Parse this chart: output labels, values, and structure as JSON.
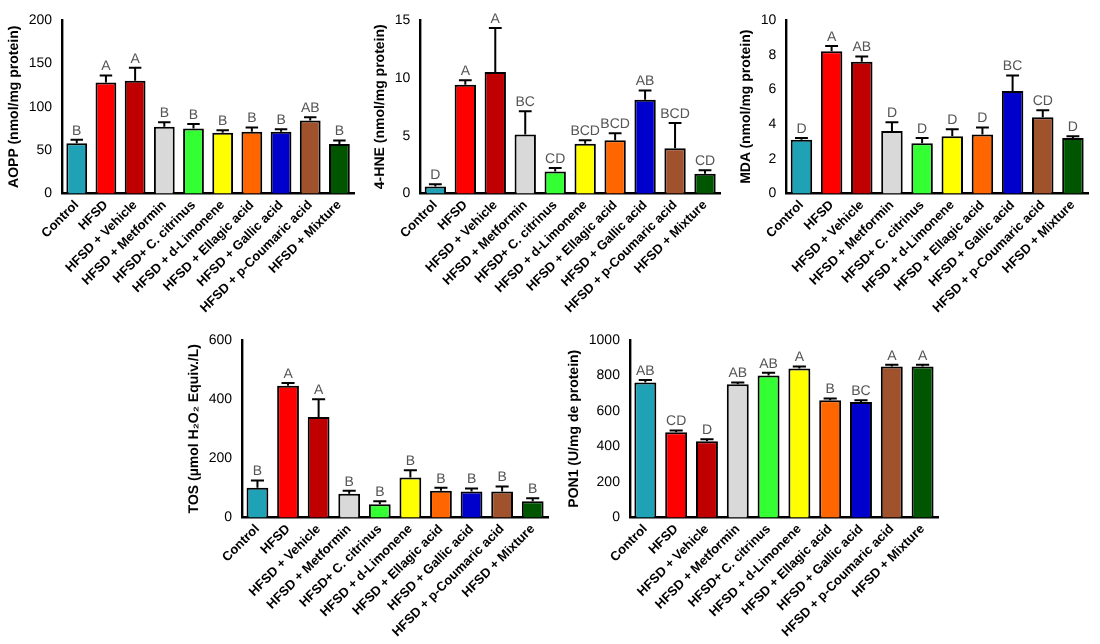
{
  "chart_data": [
    {
      "type": "bar",
      "ylabel": "AOPP (nmol/mg protein)",
      "categories": [
        "Control",
        "HFSD",
        "HFSD + Vehicle",
        "HFSD + Metformin",
        "HFSD+ C. citrinus",
        "HFSD + d-Limonene",
        "HFSD + Ellagic acid",
        "HFSD + Gallic acid",
        "HFSD + p-Coumaric acid",
        "HFSD + Mixture"
      ],
      "values": [
        58,
        128,
        130,
        77,
        75,
        70,
        71,
        71,
        84,
        57
      ],
      "colors": [
        "#1fa2b6",
        "#ff0000",
        "#c00000",
        "#d9d9d9",
        "#33ff33",
        "#ffff00",
        "#ff6600",
        "#0000cc",
        "#a0522d",
        "#005500"
      ],
      "errors": [
        [
          58,
          62
        ],
        [
          128,
          136
        ],
        [
          130,
          145
        ],
        [
          77,
          82
        ],
        [
          75,
          80
        ],
        [
          70,
          73
        ],
        [
          71,
          76
        ],
        [
          71,
          74
        ],
        [
          84,
          88
        ],
        [
          57,
          61
        ]
      ],
      "ylim": [
        0,
        200
      ],
      "yticks": [
        0,
        50,
        100,
        150,
        200
      ],
      "grid": false,
      "legend": false,
      "annotations": [
        {
          "text": "B",
          "x": "Control",
          "y": 62
        },
        {
          "text": "A",
          "x": "HFSD",
          "y": 136
        },
        {
          "text": "A",
          "x": "HFSD + Vehicle",
          "y": 145
        },
        {
          "text": "B",
          "x": "HFSD + Metformin",
          "y": 82
        },
        {
          "text": "B",
          "x": "HFSD+ C. citrinus",
          "y": 80
        },
        {
          "text": "B",
          "x": "HFSD + d-Limonene",
          "y": 73
        },
        {
          "text": "B",
          "x": "HFSD + Ellagic acid",
          "y": 76
        },
        {
          "text": "B",
          "x": "HFSD + Gallic acid",
          "y": 74
        },
        {
          "text": "AB",
          "x": "HFSD + p-Coumaric acid",
          "y": 88
        },
        {
          "text": "B",
          "x": "HFSD + Mixture",
          "y": 61
        }
      ]
    },
    {
      "type": "bar",
      "ylabel": "4-HNE (nmol/mg protein)",
      "categories": [
        "Control",
        "HFSD",
        "HFSD + Vehicle",
        "HFSD + Metformin",
        "HFSD+ C. citrinus",
        "HFSD + d-Limonene",
        "HFSD + Ellagic acid",
        "HFSD + Gallic acid",
        "HFSD + p-Coumaric acid",
        "HFSD + Mixture"
      ],
      "values": [
        0.6,
        9.4,
        10.5,
        5.1,
        1.9,
        4.3,
        4.6,
        8.1,
        3.9,
        1.7
      ],
      "colors": [
        "#1fa2b6",
        "#ff0000",
        "#c00000",
        "#d9d9d9",
        "#33ff33",
        "#ffff00",
        "#ff6600",
        "#0000cc",
        "#a0522d",
        "#005500"
      ],
      "errors": [
        [
          0.6,
          0.8
        ],
        [
          9.4,
          9.8
        ],
        [
          10.5,
          14.3
        ],
        [
          5.1,
          7.1
        ],
        [
          1.9,
          2.2
        ],
        [
          4.3,
          4.6
        ],
        [
          4.6,
          5.2
        ],
        [
          8.1,
          8.9
        ],
        [
          3.9,
          6.1
        ],
        [
          1.7,
          2.0
        ]
      ],
      "ylim": [
        0,
        15
      ],
      "yticks": [
        0,
        5,
        10,
        15
      ],
      "grid": false,
      "legend": false,
      "annotations": [
        {
          "text": "D",
          "x": "Control",
          "y": 0.8
        },
        {
          "text": "A",
          "x": "HFSD",
          "y": 9.8
        },
        {
          "text": "A",
          "x": "HFSD + Vehicle",
          "y": 14.3
        },
        {
          "text": "BC",
          "x": "HFSD + Metformin",
          "y": 7.1
        },
        {
          "text": "CD",
          "x": "HFSD+ C. citrinus",
          "y": 2.2
        },
        {
          "text": "BCD",
          "x": "HFSD + d-Limonene",
          "y": 4.6
        },
        {
          "text": "BCD",
          "x": "HFSD + Ellagic acid",
          "y": 5.2
        },
        {
          "text": "AB",
          "x": "HFSD + Gallic acid",
          "y": 8.9
        },
        {
          "text": "BCD",
          "x": "HFSD + p-Coumaric acid",
          "y": 6.1
        },
        {
          "text": "CD",
          "x": "HFSD + Mixture",
          "y": 2.0
        }
      ]
    },
    {
      "type": "bar",
      "ylabel": "MDA (nmol/mg protein)",
      "categories": [
        "Control",
        "HFSD",
        "HFSD + Vehicle",
        "HFSD + Metformin",
        "HFSD+ C. citrinus",
        "HFSD + d-Limonene",
        "HFSD + Ellagic acid",
        "HFSD + Gallic acid",
        "HFSD + p-Coumaric acid",
        "HFSD + Mixture"
      ],
      "values": [
        3.1,
        8.2,
        7.6,
        3.6,
        2.9,
        3.3,
        3.4,
        5.9,
        4.4,
        3.2
      ],
      "colors": [
        "#1fa2b6",
        "#ff0000",
        "#c00000",
        "#d9d9d9",
        "#33ff33",
        "#ffff00",
        "#ff6600",
        "#0000cc",
        "#a0522d",
        "#005500"
      ],
      "errors": [
        [
          3.1,
          3.2
        ],
        [
          8.2,
          8.5
        ],
        [
          7.6,
          7.9
        ],
        [
          3.6,
          4.1
        ],
        [
          2.9,
          3.2
        ],
        [
          3.3,
          3.7
        ],
        [
          3.4,
          3.8
        ],
        [
          5.9,
          6.8
        ],
        [
          4.4,
          4.8
        ],
        [
          3.2,
          3.3
        ]
      ],
      "ylim": [
        0,
        10
      ],
      "yticks": [
        0,
        2,
        4,
        6,
        8,
        10
      ],
      "grid": false,
      "legend": false,
      "annotations": [
        {
          "text": "D",
          "x": "Control",
          "y": 3.2
        },
        {
          "text": "A",
          "x": "HFSD",
          "y": 8.5
        },
        {
          "text": "AB",
          "x": "HFSD + Vehicle",
          "y": 7.9
        },
        {
          "text": "D",
          "x": "HFSD + Metformin",
          "y": 4.1
        },
        {
          "text": "D",
          "x": "HFSD+ C. citrinus",
          "y": 3.2
        },
        {
          "text": "D",
          "x": "HFSD + d-Limonene",
          "y": 3.7
        },
        {
          "text": "D",
          "x": "HFSD + Ellagic acid",
          "y": 3.8
        },
        {
          "text": "BC",
          "x": "HFSD + Gallic acid",
          "y": 6.8
        },
        {
          "text": "CD",
          "x": "HFSD + p-Coumaric acid",
          "y": 4.8
        },
        {
          "text": "D",
          "x": "HFSD + Mixture",
          "y": 3.3
        }
      ]
    },
    {
      "type": "bar",
      "ylabel": "TOS (µmol H₂O₂ Equiv./L)",
      "categories": [
        "Control",
        "HFSD",
        "HFSD + Vehicle",
        "HFSD + Metformin",
        "HFSD+ C. citrinus",
        "HFSD + d-Limonene",
        "HFSD + Ellagic acid",
        "HFSD + Gallic acid",
        "HFSD + p-Coumaric acid",
        "HFSD + Mixture"
      ],
      "values": [
        100,
        445,
        340,
        80,
        45,
        135,
        90,
        88,
        88,
        55
      ],
      "colors": [
        "#1fa2b6",
        "#ff0000",
        "#c00000",
        "#d9d9d9",
        "#33ff33",
        "#ffff00",
        "#ff6600",
        "#0000cc",
        "#a0522d",
        "#005500"
      ],
      "errors": [
        [
          100,
          125
        ],
        [
          445,
          455
        ],
        [
          340,
          400
        ],
        [
          80,
          90
        ],
        [
          45,
          55
        ],
        [
          135,
          160
        ],
        [
          90,
          100
        ],
        [
          88,
          98
        ],
        [
          88,
          105
        ],
        [
          55,
          65
        ]
      ],
      "ylim": [
        0,
        600
      ],
      "yticks": [
        0,
        200,
        400,
        600
      ],
      "grid": false,
      "legend": false,
      "annotations": [
        {
          "text": "B",
          "x": "Control",
          "y": 125
        },
        {
          "text": "A",
          "x": "HFSD",
          "y": 455
        },
        {
          "text": "A",
          "x": "HFSD + Vehicle",
          "y": 400
        },
        {
          "text": "B",
          "x": "HFSD + Metformin",
          "y": 90
        },
        {
          "text": "B",
          "x": "HFSD+ C. citrinus",
          "y": 55
        },
        {
          "text": "B",
          "x": "HFSD + d-Limonene",
          "y": 160
        },
        {
          "text": "B",
          "x": "HFSD + Ellagic acid",
          "y": 100
        },
        {
          "text": "B",
          "x": "HFSD + Gallic acid",
          "y": 98
        },
        {
          "text": "B",
          "x": "HFSD + p-Coumaric acid",
          "y": 105
        },
        {
          "text": "B",
          "x": "HFSD + Mixture",
          "y": 65
        }
      ]
    },
    {
      "type": "bar",
      "ylabel": "PON1 (U/mg de protein)",
      "categories": [
        "Control",
        "HFSD",
        "HFSD + Vehicle",
        "HFSD + Metformin",
        "HFSD+ C. citrinus",
        "HFSD + d-Limonene",
        "HFSD + Ellagic acid",
        "HFSD + Gallic acid",
        "HFSD + p-Coumaric acid",
        "HFSD + Mixture"
      ],
      "values": [
        760,
        480,
        430,
        750,
        800,
        840,
        660,
        650,
        850,
        850
      ],
      "colors": [
        "#1fa2b6",
        "#ff0000",
        "#c00000",
        "#d9d9d9",
        "#33ff33",
        "#ffff00",
        "#ff6600",
        "#0000cc",
        "#a0522d",
        "#005500"
      ],
      "errors": [
        [
          760,
          775
        ],
        [
          480,
          490
        ],
        [
          430,
          440
        ],
        [
          750,
          760
        ],
        [
          800,
          815
        ],
        [
          840,
          850
        ],
        [
          660,
          670
        ],
        [
          650,
          660
        ],
        [
          850,
          860
        ],
        [
          850,
          860
        ]
      ],
      "ylim": [
        0,
        1000
      ],
      "yticks": [
        0,
        200,
        400,
        600,
        800,
        1000
      ],
      "grid": false,
      "legend": false,
      "annotations": [
        {
          "text": "AB",
          "x": "Control",
          "y": 775
        },
        {
          "text": "CD",
          "x": "HFSD",
          "y": 490
        },
        {
          "text": "D",
          "x": "HFSD + Vehicle",
          "y": 440
        },
        {
          "text": "AB",
          "x": "HFSD + Metformin",
          "y": 760
        },
        {
          "text": "AB",
          "x": "HFSD+ C. citrinus",
          "y": 815
        },
        {
          "text": "A",
          "x": "HFSD + d-Limonene",
          "y": 850
        },
        {
          "text": "B",
          "x": "HFSD + Ellagic acid",
          "y": 670
        },
        {
          "text": "BC",
          "x": "HFSD + Gallic acid",
          "y": 660
        },
        {
          "text": "A",
          "x": "HFSD + p-Coumaric acid",
          "y": 860
        },
        {
          "text": "A",
          "x": "HFSD + Mixture",
          "y": 860
        }
      ]
    }
  ]
}
